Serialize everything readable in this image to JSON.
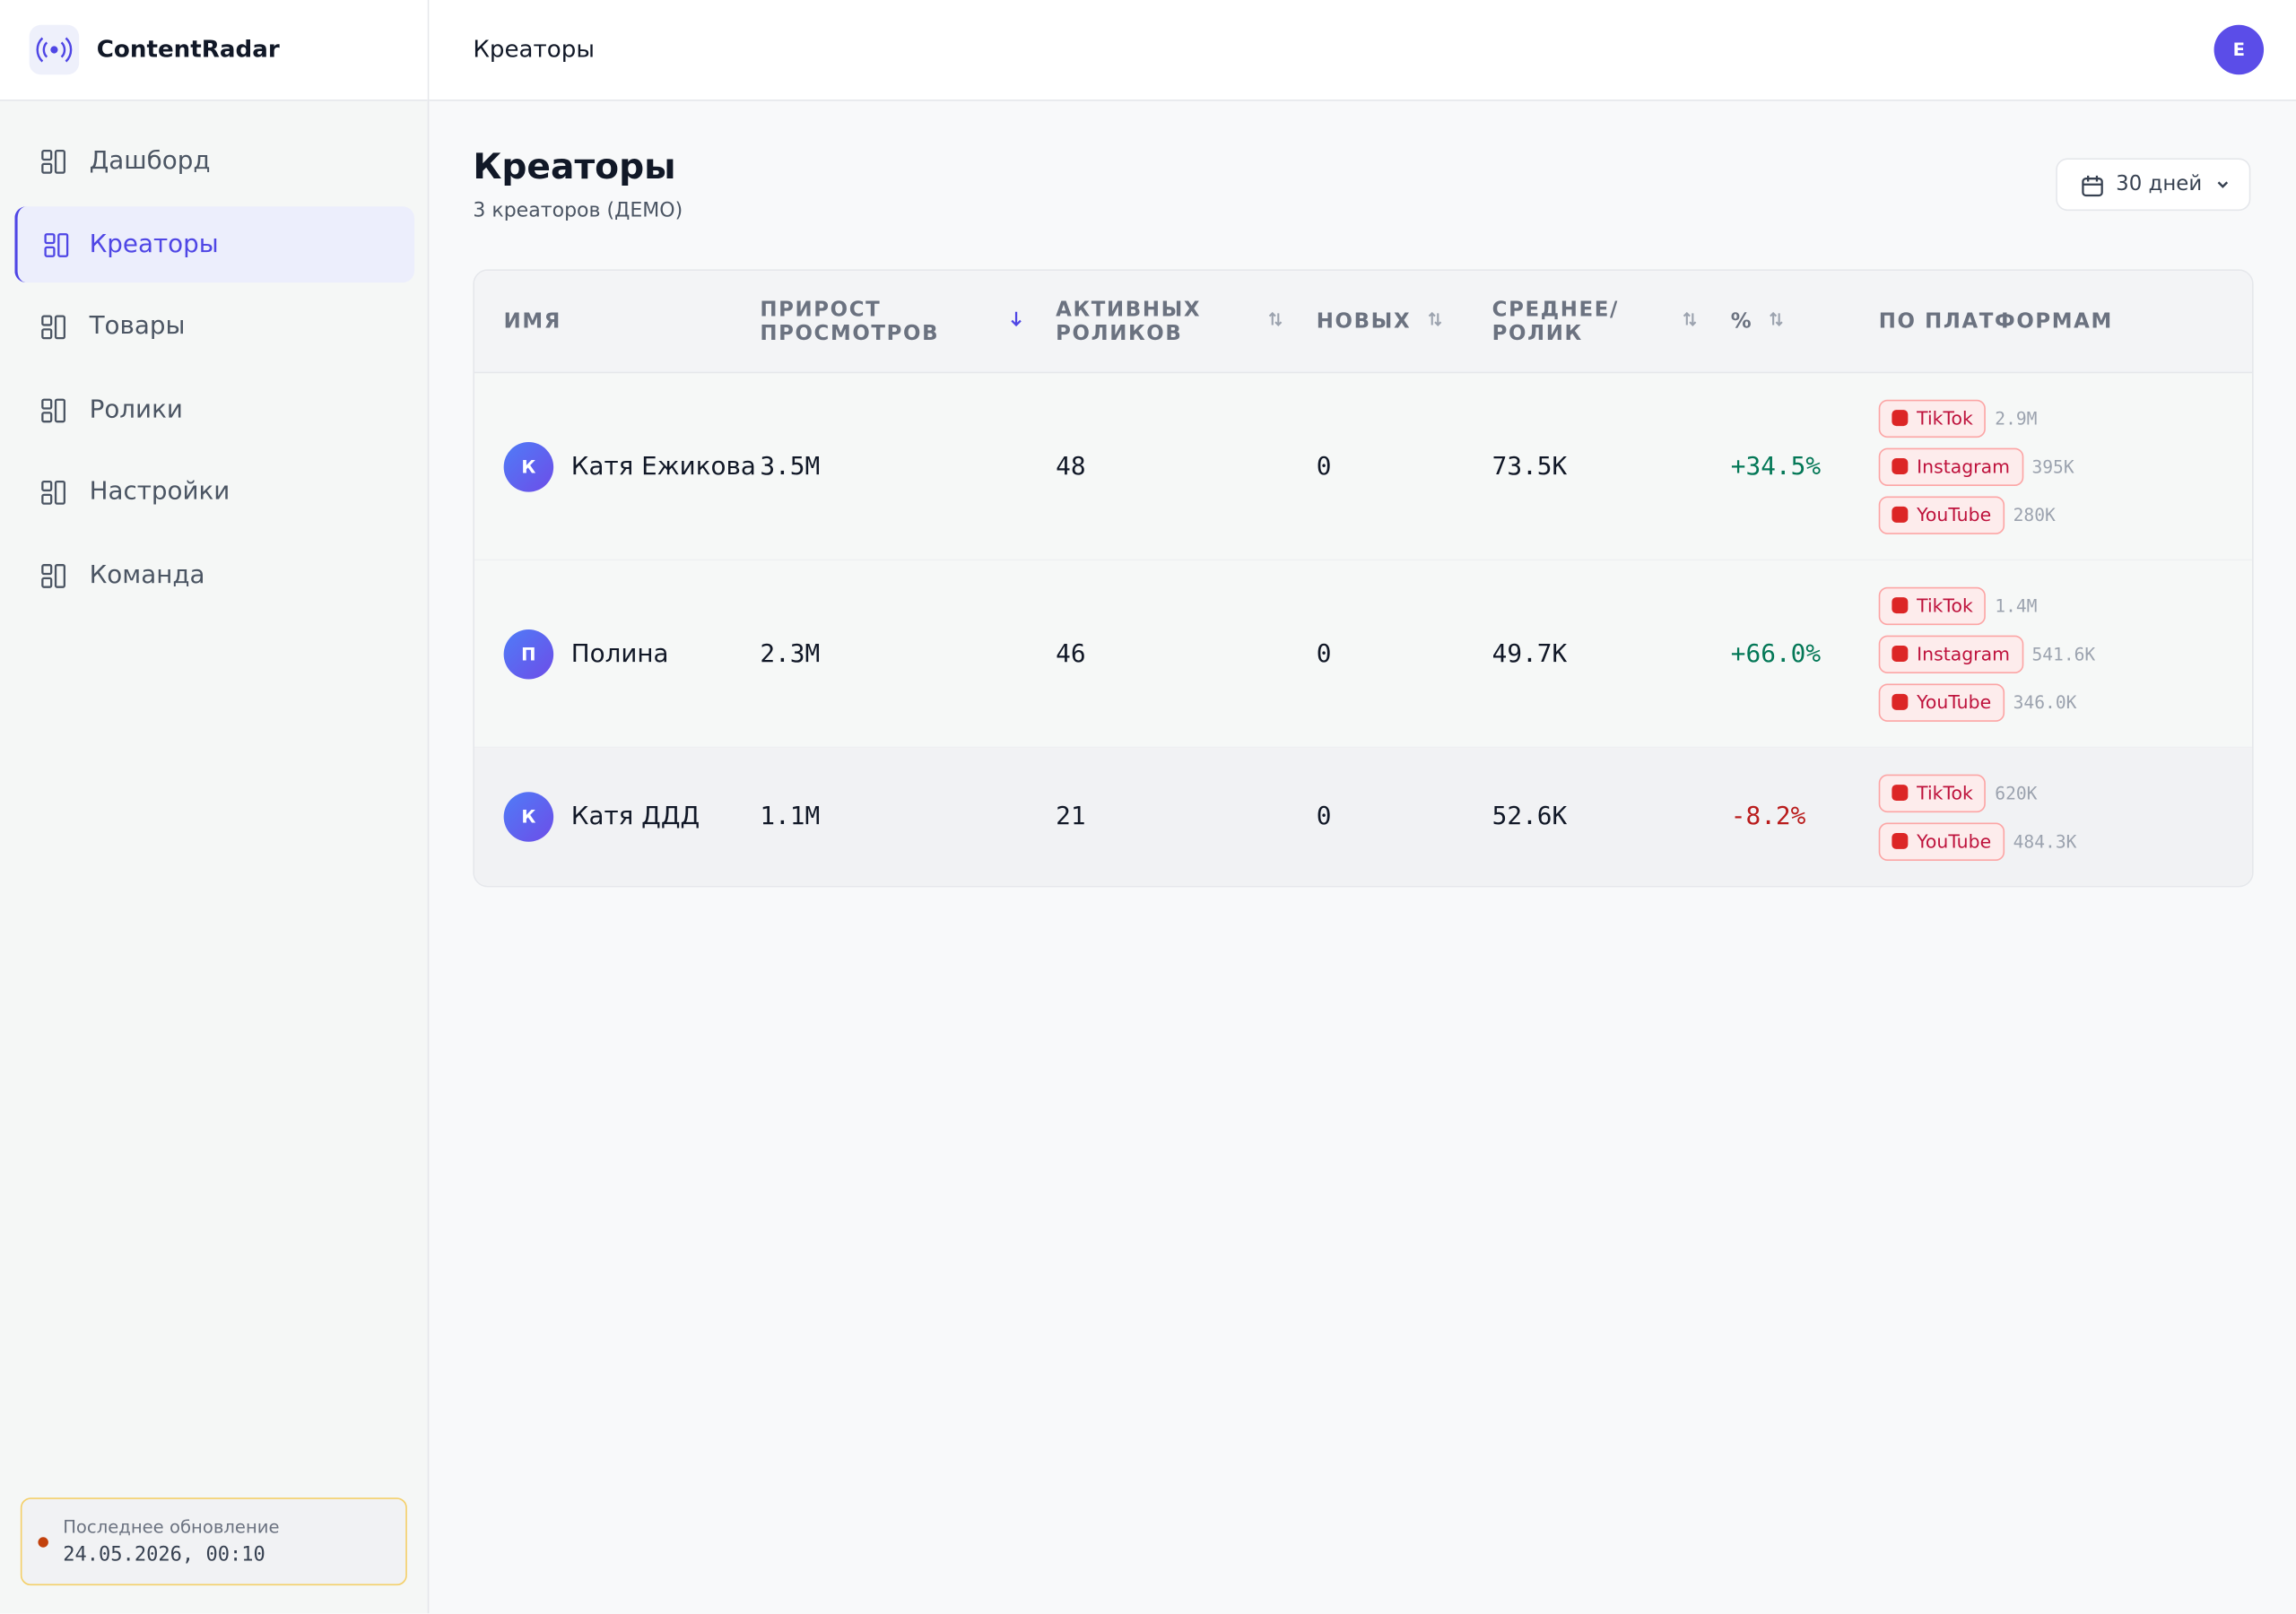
{
  "sidebar": {
    "brand": "ContentRadar",
    "nav": [
      "Дашборд",
      "Креаторы",
      "Товары",
      "Ролики",
      "Настройки",
      "Команда"
    ],
    "status_label": "Последнее обновление",
    "status_time": "24.05.2026, 00:10"
  },
  "header": {
    "title": "Креаторы",
    "user": "E"
  },
  "page": {
    "title": "Креаторы",
    "subtitle": "3 креаторов (ДЕМО)",
    "range": "30 дней"
  },
  "table": {
    "columns": [
      "ИМЯ",
      "ПРИРОСТ ПРОСМОТРОВ",
      "АКТИВНЫХ РОЛИКОВ",
      "НОВЫХ",
      "СРЕДНЕЕ/ РОЛИК",
      "%",
      "ПО ПЛАТФОРМАМ"
    ],
    "rows": [
      {
        "initial": "К",
        "name": "Катя Ежикова",
        "growth": "3.5M",
        "active": "48",
        "new": "0",
        "avg": "73.5K",
        "pct": "+34.5%",
        "platforms": [
          {
            "name": "TikTok",
            "value": "2.9M"
          },
          {
            "name": "Instagram",
            "value": "395K"
          },
          {
            "name": "YouTube",
            "value": "280K"
          }
        ]
      },
      {
        "initial": "П",
        "name": "Полина",
        "growth": "2.3M",
        "active": "46",
        "new": "0",
        "avg": "49.7K",
        "pct": "+66.0%",
        "platforms": [
          {
            "name": "TikTok",
            "value": "1.4M"
          },
          {
            "name": "Instagram",
            "value": "541.6K"
          },
          {
            "name": "YouTube",
            "value": "346.0K"
          }
        ]
      },
      {
        "initial": "К",
        "name": "Катя ДДД",
        "growth": "1.1M",
        "active": "21",
        "new": "0",
        "avg": "52.6K",
        "pct": "-8.2%",
        "platforms": [
          {
            "name": "TikTok",
            "value": "620K"
          },
          {
            "name": "YouTube",
            "value": "484.3K"
          }
        ]
      }
    ]
  }
}
